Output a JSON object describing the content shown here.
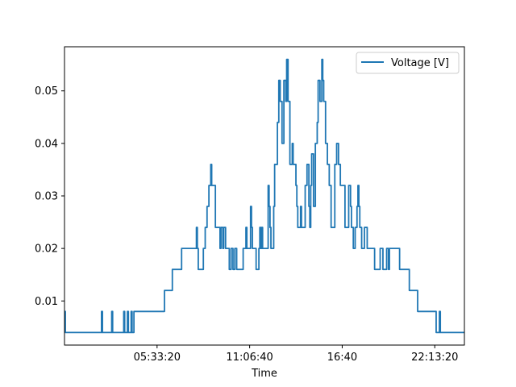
{
  "chart_data": {
    "type": "line",
    "title": "",
    "xlabel": "Time",
    "ylabel": "",
    "xlim": [
      0,
      86400
    ],
    "ylim": [
      0.0016,
      0.0584
    ],
    "x_ticks": [
      {
        "value": 20000,
        "label": "05:33:20"
      },
      {
        "value": 40000,
        "label": "11:06:40"
      },
      {
        "value": 60000,
        "label": "16:40"
      },
      {
        "value": 80000,
        "label": "22:13:20"
      }
    ],
    "y_ticks": [
      {
        "value": 0.01,
        "label": "0.01"
      },
      {
        "value": 0.02,
        "label": "0.02"
      },
      {
        "value": 0.03,
        "label": "0.03"
      },
      {
        "value": 0.04,
        "label": "0.04"
      },
      {
        "value": 0.05,
        "label": "0.05"
      }
    ],
    "grid": false,
    "legend_position": "top-right",
    "series": [
      {
        "name": "Voltage [V]",
        "color": "#1f77b4",
        "step": true,
        "points": [
          [
            0,
            0.008
          ],
          [
            180,
            0.004
          ],
          [
            7800,
            0.004
          ],
          [
            8000,
            0.008
          ],
          [
            8200,
            0.004
          ],
          [
            10000,
            0.004
          ],
          [
            10200,
            0.008
          ],
          [
            10400,
            0.004
          ],
          [
            12600,
            0.004
          ],
          [
            12800,
            0.008
          ],
          [
            13000,
            0.004
          ],
          [
            13400,
            0.004
          ],
          [
            13600,
            0.008
          ],
          [
            13800,
            0.004
          ],
          [
            14200,
            0.004
          ],
          [
            14400,
            0.008
          ],
          [
            14600,
            0.004
          ],
          [
            15000,
            0.008
          ],
          [
            21500,
            0.008
          ],
          [
            21600,
            0.012
          ],
          [
            23200,
            0.012
          ],
          [
            23300,
            0.016
          ],
          [
            25200,
            0.016
          ],
          [
            25300,
            0.02
          ],
          [
            28400,
            0.02
          ],
          [
            28500,
            0.024
          ],
          [
            28700,
            0.02
          ],
          [
            28900,
            0.016
          ],
          [
            29800,
            0.016
          ],
          [
            30000,
            0.02
          ],
          [
            30400,
            0.024
          ],
          [
            30800,
            0.028
          ],
          [
            31200,
            0.032
          ],
          [
            31600,
            0.036
          ],
          [
            31800,
            0.032
          ],
          [
            32400,
            0.032
          ],
          [
            32600,
            0.024
          ],
          [
            33400,
            0.024
          ],
          [
            33600,
            0.02
          ],
          [
            33800,
            0.024
          ],
          [
            34200,
            0.02
          ],
          [
            34400,
            0.024
          ],
          [
            34800,
            0.02
          ],
          [
            35400,
            0.02
          ],
          [
            35600,
            0.016
          ],
          [
            36000,
            0.02
          ],
          [
            36400,
            0.016
          ],
          [
            36800,
            0.02
          ],
          [
            37200,
            0.016
          ],
          [
            38400,
            0.016
          ],
          [
            38600,
            0.02
          ],
          [
            39000,
            0.02
          ],
          [
            39200,
            0.024
          ],
          [
            39400,
            0.02
          ],
          [
            40000,
            0.02
          ],
          [
            40200,
            0.028
          ],
          [
            40400,
            0.024
          ],
          [
            40600,
            0.02
          ],
          [
            41200,
            0.02
          ],
          [
            41400,
            0.016
          ],
          [
            42000,
            0.02
          ],
          [
            42200,
            0.024
          ],
          [
            42400,
            0.02
          ],
          [
            42600,
            0.024
          ],
          [
            42800,
            0.02
          ],
          [
            43600,
            0.02
          ],
          [
            44000,
            0.032
          ],
          [
            44200,
            0.028
          ],
          [
            44400,
            0.024
          ],
          [
            44600,
            0.02
          ],
          [
            45200,
            0.028
          ],
          [
            45400,
            0.036
          ],
          [
            46000,
            0.044
          ],
          [
            46300,
            0.052
          ],
          [
            46600,
            0.048
          ],
          [
            47000,
            0.04
          ],
          [
            47400,
            0.052
          ],
          [
            47800,
            0.048
          ],
          [
            48000,
            0.056
          ],
          [
            48300,
            0.048
          ],
          [
            48700,
            0.036
          ],
          [
            49200,
            0.04
          ],
          [
            49400,
            0.036
          ],
          [
            50000,
            0.032
          ],
          [
            50200,
            0.028
          ],
          [
            50400,
            0.024
          ],
          [
            51000,
            0.028
          ],
          [
            51200,
            0.024
          ],
          [
            52000,
            0.032
          ],
          [
            52400,
            0.036
          ],
          [
            52800,
            0.028
          ],
          [
            53000,
            0.024
          ],
          [
            53200,
            0.032
          ],
          [
            53400,
            0.038
          ],
          [
            53800,
            0.028
          ],
          [
            54200,
            0.04
          ],
          [
            54600,
            0.044
          ],
          [
            54800,
            0.052
          ],
          [
            55200,
            0.048
          ],
          [
            55600,
            0.056
          ],
          [
            55800,
            0.052
          ],
          [
            56000,
            0.048
          ],
          [
            56400,
            0.04
          ],
          [
            56800,
            0.036
          ],
          [
            57200,
            0.032
          ],
          [
            57600,
            0.024
          ],
          [
            58200,
            0.024
          ],
          [
            58400,
            0.036
          ],
          [
            58800,
            0.04
          ],
          [
            59200,
            0.036
          ],
          [
            59600,
            0.032
          ],
          [
            60200,
            0.032
          ],
          [
            60600,
            0.024
          ],
          [
            61000,
            0.024
          ],
          [
            61400,
            0.032
          ],
          [
            61800,
            0.028
          ],
          [
            62000,
            0.024
          ],
          [
            62400,
            0.02
          ],
          [
            62800,
            0.024
          ],
          [
            63200,
            0.028
          ],
          [
            63400,
            0.032
          ],
          [
            63600,
            0.028
          ],
          [
            63800,
            0.024
          ],
          [
            64200,
            0.02
          ],
          [
            64800,
            0.024
          ],
          [
            65400,
            0.02
          ],
          [
            66800,
            0.02
          ],
          [
            67000,
            0.016
          ],
          [
            68000,
            0.016
          ],
          [
            68200,
            0.02
          ],
          [
            68800,
            0.016
          ],
          [
            69400,
            0.016
          ],
          [
            69600,
            0.02
          ],
          [
            70000,
            0.016
          ],
          [
            70200,
            0.02
          ],
          [
            72200,
            0.02
          ],
          [
            72400,
            0.016
          ],
          [
            74400,
            0.016
          ],
          [
            74500,
            0.012
          ],
          [
            76200,
            0.012
          ],
          [
            76300,
            0.008
          ],
          [
            80200,
            0.008
          ],
          [
            80300,
            0.004
          ],
          [
            80800,
            0.004
          ],
          [
            81000,
            0.008
          ],
          [
            81200,
            0.004
          ],
          [
            86400,
            0.004
          ]
        ]
      }
    ]
  }
}
